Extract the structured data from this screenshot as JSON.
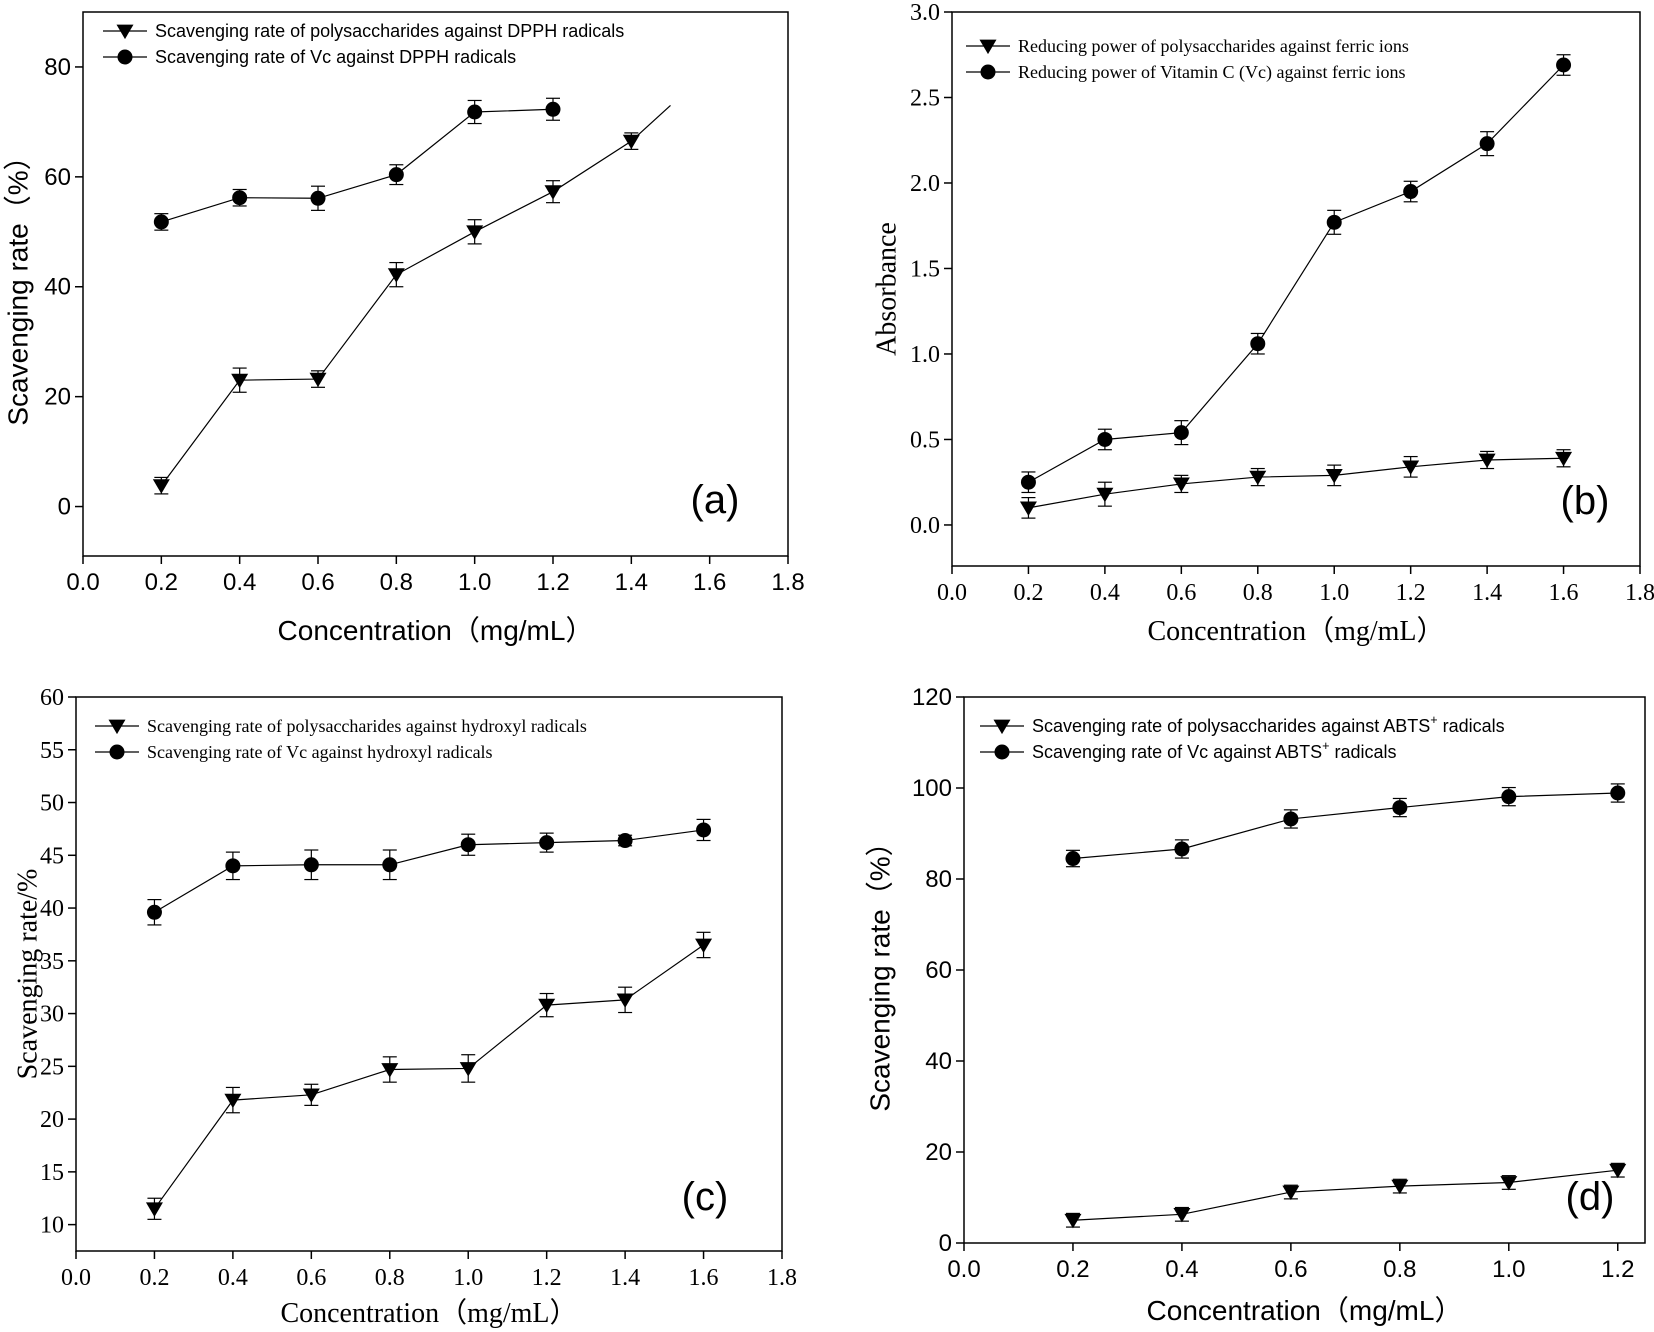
{
  "figure": {
    "colors": {
      "ink": "#000000",
      "background": "#ffffff"
    }
  },
  "chart_data": [
    {
      "panel": "(a)",
      "type": "line",
      "font": "sans",
      "xlabel": "Concentration（mg/mL）",
      "ylabel": "Scavenging rate（%）",
      "xlim": [
        0,
        1.8
      ],
      "ylim": [
        -9,
        90
      ],
      "xticks": [
        0.0,
        0.2,
        0.4,
        0.6,
        0.8,
        1.0,
        1.2,
        1.4,
        1.6,
        1.8
      ],
      "yticks": [
        0,
        20,
        40,
        60,
        80
      ],
      "x_decimals": 1,
      "y_decimals": 0,
      "legend_position": "top-left",
      "series": [
        {
          "name": "Scavenging rate of polysaccharides against DPPH radicals",
          "marker": "triangle-down",
          "x": [
            0.2,
            0.4,
            0.6,
            0.8,
            1.0,
            1.2,
            1.4
          ],
          "values": [
            3.8,
            23.0,
            23.2,
            42.2,
            50.0,
            57.3,
            66.5
          ],
          "errors": [
            1.5,
            2.2,
            1.5,
            2.2,
            2.2,
            2.0,
            1.5
          ],
          "line_extends_to": [
            1.5,
            73.0
          ]
        },
        {
          "name": "Scavenging rate of Vc against DPPH radicals",
          "marker": "circle",
          "x": [
            0.2,
            0.4,
            0.6,
            0.8,
            1.0,
            1.2
          ],
          "values": [
            51.8,
            56.2,
            56.1,
            60.4,
            71.8,
            72.3
          ],
          "errors": [
            1.5,
            1.5,
            2.2,
            1.8,
            2.1,
            2.0
          ]
        }
      ]
    },
    {
      "panel": "(b)",
      "type": "line",
      "font": "serif",
      "xlabel": "Concentration（mg/mL）",
      "ylabel": "Absorbance",
      "xlim": [
        0,
        1.8
      ],
      "ylim": [
        -0.24,
        3.0
      ],
      "xticks": [
        0.0,
        0.2,
        0.4,
        0.6,
        0.8,
        1.0,
        1.2,
        1.4,
        1.6,
        1.8
      ],
      "yticks": [
        0.0,
        0.5,
        1.0,
        1.5,
        2.0,
        2.5,
        3.0
      ],
      "x_decimals": 1,
      "y_decimals": 1,
      "legend_position": "top-left",
      "series": [
        {
          "name": "Reducing power of polysaccharides against ferric ions",
          "marker": "triangle-down",
          "x": [
            0.2,
            0.4,
            0.6,
            0.8,
            1.0,
            1.2,
            1.4,
            1.6
          ],
          "values": [
            0.1,
            0.18,
            0.24,
            0.28,
            0.29,
            0.34,
            0.38,
            0.39
          ],
          "errors": [
            0.06,
            0.07,
            0.05,
            0.05,
            0.06,
            0.06,
            0.05,
            0.05
          ]
        },
        {
          "name": "Reducing power of Vitamin C (Vc) against ferric ions",
          "marker": "circle",
          "x": [
            0.2,
            0.4,
            0.6,
            0.8,
            1.0,
            1.2,
            1.4,
            1.6
          ],
          "values": [
            0.25,
            0.5,
            0.54,
            1.06,
            1.77,
            1.95,
            2.23,
            2.69
          ],
          "errors": [
            0.06,
            0.06,
            0.07,
            0.06,
            0.07,
            0.06,
            0.07,
            0.06
          ]
        }
      ]
    },
    {
      "panel": "(c)",
      "type": "line",
      "font": "serif",
      "xlabel": "Concentration（mg/mL）",
      "ylabel": "Scavenging rate/%",
      "xlim": [
        0,
        1.8
      ],
      "ylim": [
        7.5,
        60
      ],
      "xticks": [
        0.0,
        0.2,
        0.4,
        0.6,
        0.8,
        1.0,
        1.2,
        1.4,
        1.6,
        1.8
      ],
      "yticks": [
        10,
        15,
        20,
        25,
        30,
        35,
        40,
        45,
        50,
        55,
        60
      ],
      "x_decimals": 1,
      "y_decimals": 0,
      "legend_position": "top-left",
      "series": [
        {
          "name": "Scavenging rate of polysaccharides against hydroxyl radicals",
          "marker": "triangle-down",
          "x": [
            0.2,
            0.4,
            0.6,
            0.8,
            1.0,
            1.2,
            1.4,
            1.6
          ],
          "values": [
            11.5,
            21.8,
            22.3,
            24.7,
            24.8,
            30.8,
            31.3,
            36.5
          ],
          "errors": [
            1.0,
            1.2,
            1.0,
            1.2,
            1.3,
            1.1,
            1.2,
            1.2
          ]
        },
        {
          "name": "Scavenging rate of Vc against hydroxyl radicals",
          "marker": "circle",
          "x": [
            0.2,
            0.4,
            0.6,
            0.8,
            1.0,
            1.2,
            1.4,
            1.6
          ],
          "values": [
            39.6,
            44.0,
            44.1,
            44.1,
            46.0,
            46.2,
            46.4,
            47.4
          ],
          "errors": [
            1.2,
            1.3,
            1.4,
            1.4,
            1.0,
            0.9,
            0.5,
            1.0
          ]
        }
      ]
    },
    {
      "panel": "(d)",
      "type": "line",
      "font": "sans",
      "xlabel": "Concentration（mg/mL）",
      "ylabel": "Scavenging rate（%）",
      "xlim": [
        0,
        1.25
      ],
      "ylim": [
        0,
        120
      ],
      "xticks": [
        0.0,
        0.2,
        0.4,
        0.6,
        0.8,
        1.0,
        1.2
      ],
      "yticks": [
        0,
        20,
        40,
        60,
        80,
        100,
        120
      ],
      "x_decimals": 1,
      "y_decimals": 0,
      "legend_position": "top-left",
      "series": [
        {
          "name": "Scavenging rate of polysaccharides against ABTS",
          "name_sup": "+",
          "name_suffix": " radicals",
          "marker": "triangle-down",
          "x": [
            0.2,
            0.4,
            0.6,
            0.8,
            1.0,
            1.2
          ],
          "values": [
            5.0,
            6.3,
            11.2,
            12.5,
            13.3,
            16.0
          ],
          "errors": [
            1.5,
            1.5,
            1.5,
            1.5,
            1.5,
            1.5
          ]
        },
        {
          "name": "Scavenging rate of Vc against ABTS",
          "name_sup": "+",
          "name_suffix": " radicals",
          "marker": "circle",
          "x": [
            0.2,
            0.4,
            0.6,
            0.8,
            1.0,
            1.2
          ],
          "values": [
            84.5,
            86.6,
            93.2,
            95.7,
            98.1,
            98.9
          ],
          "errors": [
            1.8,
            2.0,
            2.0,
            2.0,
            2.0,
            2.0
          ]
        }
      ]
    }
  ]
}
